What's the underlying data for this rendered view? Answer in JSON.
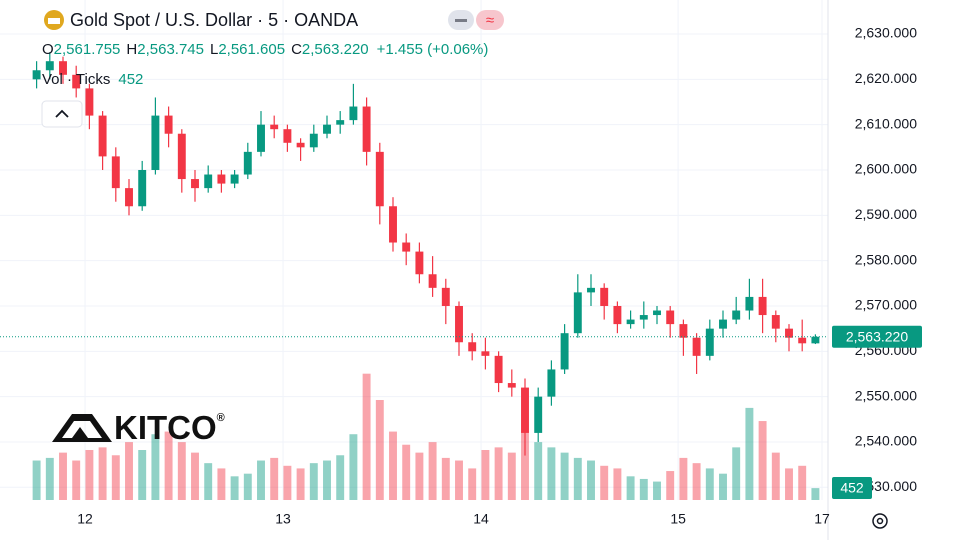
{
  "chart_data": {
    "type": "candlestick",
    "title": "Gold Spot / U.S. Dollar · 5 · OANDA",
    "legend": {
      "o": "O",
      "open": "2,561.755",
      "h": "H",
      "high": "2,563.745",
      "l": "L",
      "low": "2,561.605",
      "c": "C",
      "close": "2,563.220",
      "change": "+1.455 (+0.06%)"
    },
    "volume_legend": {
      "name": "Vol · Ticks",
      "value": "452"
    },
    "logo": {
      "text": "KITCO",
      "mark": "®"
    },
    "up_color": "#089981",
    "down_color": "#f23645",
    "series": {
      "open": [
        2620,
        2622,
        2624,
        2621,
        2618,
        2612,
        2603,
        2596,
        2592,
        2600,
        2612,
        2608,
        2598,
        2596,
        2599,
        2597,
        2599,
        2604,
        2610,
        2609,
        2606,
        2605,
        2608,
        2610,
        2611,
        2614,
        2604,
        2592,
        2584,
        2582,
        2577,
        2574,
        2570,
        2562,
        2560,
        2559,
        2553,
        2552,
        2542,
        2550,
        2556,
        2564,
        2573,
        2574,
        2570,
        2566,
        2567,
        2568,
        2569,
        2566,
        2563,
        2559,
        2565,
        2567,
        2569,
        2572,
        2568,
        2565,
        2563,
        2561.755
      ],
      "high": [
        2624,
        2626,
        2625,
        2623,
        2619,
        2613,
        2605,
        2598,
        2602,
        2616,
        2614,
        2609,
        2600,
        2601,
        2600,
        2600,
        2606,
        2613,
        2612,
        2610,
        2607,
        2610,
        2612,
        2613,
        2619,
        2616,
        2606,
        2594,
        2586,
        2584,
        2581,
        2576,
        2571,
        2564,
        2563,
        2560,
        2556,
        2554,
        2552,
        2558,
        2566,
        2577,
        2577,
        2575,
        2571,
        2569,
        2571,
        2570,
        2570,
        2567,
        2564,
        2567,
        2569,
        2572,
        2576,
        2576,
        2569,
        2566,
        2567,
        2563.745
      ],
      "low": [
        2618,
        2620,
        2619,
        2616,
        2609,
        2600,
        2593,
        2590,
        2591,
        2599,
        2605,
        2595,
        2593,
        2595,
        2595,
        2596,
        2598,
        2603,
        2607,
        2604,
        2602,
        2604,
        2607,
        2608,
        2610,
        2601,
        2588,
        2582,
        2579,
        2575,
        2572,
        2566,
        2559,
        2558,
        2556,
        2551,
        2550,
        2537,
        2540,
        2548,
        2555,
        2563,
        2570,
        2567,
        2564,
        2565,
        2565,
        2566,
        2563,
        2559,
        2555,
        2558,
        2563,
        2566,
        2567,
        2564,
        2562,
        2560,
        2560,
        2561.605
      ],
      "close": [
        2622,
        2624,
        2621,
        2618,
        2612,
        2603,
        2596,
        2592,
        2600,
        2612,
        2608,
        2598,
        2596,
        2599,
        2597,
        2599,
        2604,
        2610,
        2609,
        2606,
        2605,
        2608,
        2610,
        2611,
        2614,
        2604,
        2592,
        2584,
        2582,
        2577,
        2574,
        2570,
        2562,
        2560,
        2559,
        2553,
        2552,
        2542,
        2550,
        2556,
        2564,
        2573,
        2574,
        2570,
        2566,
        2567,
        2568,
        2569,
        2566,
        2563,
        2559,
        2565,
        2567,
        2569,
        2572,
        2568,
        2565,
        2563,
        2561.765,
        2563.22
      ]
    },
    "volume": [
      1500,
      1600,
      1800,
      1500,
      1900,
      2000,
      1700,
      2200,
      1900,
      2500,
      2600,
      2200,
      1800,
      1400,
      1200,
      900,
      1000,
      1500,
      1600,
      1300,
      1200,
      1400,
      1500,
      1700,
      2500,
      4800,
      3800,
      2600,
      2100,
      1800,
      2200,
      1600,
      1500,
      1200,
      1900,
      2000,
      1800,
      2600,
      2200,
      2000,
      1800,
      1600,
      1500,
      1300,
      1200,
      900,
      800,
      700,
      1100,
      1600,
      1400,
      1200,
      1000,
      2000,
      3500,
      3000,
      1800,
      1200,
      1300,
      452
    ],
    "volume_lim": [
      0,
      19000
    ],
    "last_price_label": "2,563.220",
    "last_volume_label": "452",
    "xlim": [
      -0.5,
      59.5
    ],
    "xticks": [
      {
        "value": 3.67,
        "label": "12"
      },
      {
        "value": 18.67,
        "label": "13"
      },
      {
        "value": 33.67,
        "label": "14"
      },
      {
        "value": 48.6,
        "label": "15"
      },
      {
        "value": 59.5,
        "label": "17"
      }
    ],
    "ylim": [
      2527.2,
      2637.5
    ],
    "yticks": [
      {
        "value": 2530,
        "label": "2,530.000"
      },
      {
        "value": 2540,
        "label": "2,540.000"
      },
      {
        "value": 2550,
        "label": "2,550.000"
      },
      {
        "value": 2560,
        "label": "2,560.000"
      },
      {
        "value": 2570,
        "label": "2,570.000"
      },
      {
        "value": 2580,
        "label": "2,580.000"
      },
      {
        "value": 2590,
        "label": "2,590.000"
      },
      {
        "value": 2600,
        "label": "2,600.000"
      },
      {
        "value": 2610,
        "label": "2,610.000"
      },
      {
        "value": 2620,
        "label": "2,620.000"
      },
      {
        "value": 2630,
        "label": "2,630.000"
      }
    ],
    "grid": true
  }
}
